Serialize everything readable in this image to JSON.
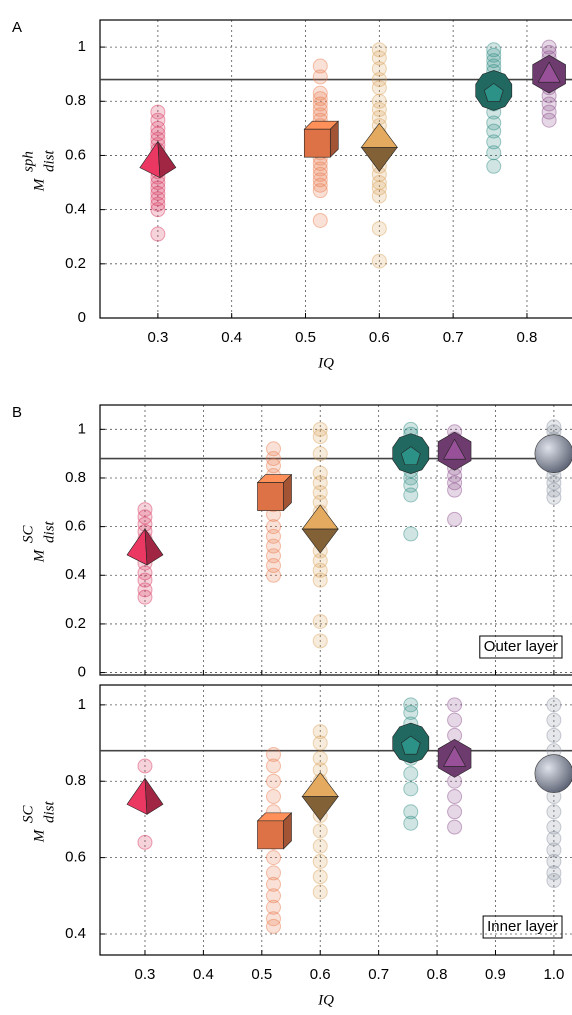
{
  "chart_data": [
    {
      "type": "scatter",
      "label": "A",
      "ylabel": {
        "base": "M",
        "sup": "sph",
        "sub": "dist"
      },
      "xlabel": "IQ",
      "xlim": [
        0.2216,
        0.861
      ],
      "ylim": [
        0,
        1.1
      ],
      "xticks": [
        0.3,
        0.4,
        0.5,
        0.6,
        0.7,
        0.8
      ],
      "yticks": [
        0,
        0.2,
        0.4,
        0.6,
        0.8,
        1
      ],
      "xticklabels": true,
      "grid": true,
      "hline": 0.88,
      "series": [
        {
          "color": "#d6335a",
          "marker": "tetrahedron",
          "x": 0.3,
          "mean": 0.57,
          "values": [
            0.31,
            0.4,
            0.42,
            0.44,
            0.46,
            0.48,
            0.5,
            0.52,
            0.54,
            0.56,
            0.58,
            0.6,
            0.62,
            0.64,
            0.66,
            0.68,
            0.7,
            0.73,
            0.76
          ]
        },
        {
          "color": "#e8784a",
          "marker": "cube",
          "x": 0.52,
          "mean": 0.66,
          "values": [
            0.36,
            0.47,
            0.49,
            0.51,
            0.53,
            0.55,
            0.57,
            0.59,
            0.61,
            0.63,
            0.65,
            0.67,
            0.69,
            0.71,
            0.73,
            0.75,
            0.77,
            0.79,
            0.81,
            0.83,
            0.89,
            0.93
          ]
        },
        {
          "color": "#d9a25a",
          "marker": "octahedron",
          "x": 0.6,
          "mean": 0.63,
          "values": [
            0.21,
            0.33,
            0.45,
            0.48,
            0.5,
            0.53,
            0.56,
            0.59,
            0.62,
            0.65,
            0.68,
            0.71,
            0.74,
            0.77,
            0.8,
            0.85,
            0.88,
            0.92,
            0.96,
            0.99
          ]
        },
        {
          "color": "#2a8a80",
          "marker": "dodecahedron",
          "x": 0.755,
          "mean": 0.84,
          "values": [
            0.56,
            0.61,
            0.65,
            0.69,
            0.72,
            0.76,
            0.79,
            0.82,
            0.85,
            0.88,
            0.91,
            0.93,
            0.95,
            0.97,
            0.99
          ]
        },
        {
          "color": "#8a4a8a",
          "marker": "icosahedron",
          "x": 0.83,
          "mean": 0.9,
          "values": [
            0.73,
            0.76,
            0.79,
            0.82,
            0.85,
            0.88,
            0.9,
            0.92,
            0.94,
            0.96,
            0.98,
            1.0
          ]
        }
      ]
    },
    {
      "type": "scatter",
      "label": "B",
      "annotation": "Outer layer",
      "ylabel": {
        "base": "M",
        "sup": "SC",
        "sub": "dist"
      },
      "xlim": [
        0.223,
        1.031
      ],
      "ylim": [
        -0.01,
        1.1
      ],
      "xticks": [
        0.3,
        0.4,
        0.5,
        0.6,
        0.7,
        0.8,
        0.9,
        1
      ],
      "yticks": [
        0,
        0.2,
        0.4,
        0.6,
        0.8,
        1
      ],
      "xticklabels": false,
      "grid": true,
      "hline": 0.88,
      "series": [
        {
          "color": "#d6335a",
          "marker": "tetrahedron",
          "x": 0.3,
          "mean": 0.5,
          "values": [
            0.31,
            0.34,
            0.38,
            0.41,
            0.45,
            0.48,
            0.52,
            0.55,
            0.58,
            0.61,
            0.64,
            0.67
          ]
        },
        {
          "color": "#e8784a",
          "marker": "cube",
          "x": 0.52,
          "mean": 0.74,
          "values": [
            0.4,
            0.44,
            0.48,
            0.52,
            0.56,
            0.6,
            0.65,
            0.69,
            0.73,
            0.77,
            0.81,
            0.85,
            0.88,
            0.92
          ]
        },
        {
          "color": "#d9a25a",
          "marker": "octahedron",
          "x": 0.6,
          "mean": 0.59,
          "values": [
            0.13,
            0.21,
            0.38,
            0.42,
            0.46,
            0.5,
            0.54,
            0.58,
            0.62,
            0.66,
            0.7,
            0.74,
            0.78,
            0.82,
            0.9,
            0.97,
            1.0
          ]
        },
        {
          "color": "#2a8a80",
          "marker": "dodecahedron",
          "x": 0.755,
          "mean": 0.9,
          "values": [
            0.57,
            0.73,
            0.77,
            0.8,
            0.83,
            0.86,
            0.89,
            0.92,
            0.95,
            0.98,
            1.0
          ]
        },
        {
          "color": "#8a4a8a",
          "marker": "icosahedron",
          "x": 0.83,
          "mean": 0.91,
          "values": [
            0.63,
            0.75,
            0.78,
            0.81,
            0.84,
            0.87,
            0.9,
            0.93,
            0.96,
            0.99
          ]
        },
        {
          "color": "#8a90a0",
          "marker": "sphere",
          "x": 1.0,
          "mean": 0.9,
          "values": [
            0.72,
            0.75,
            0.78,
            0.81,
            0.84,
            0.87,
            0.9,
            0.93,
            0.96,
            0.99,
            1.01
          ]
        }
      ]
    },
    {
      "type": "scatter",
      "annotation": "Inner layer",
      "ylabel": {
        "base": "M",
        "sup": "SC",
        "sub": "dist"
      },
      "xlabel": "IQ",
      "xlim": [
        0.223,
        1.031
      ],
      "ylim": [
        0.345,
        1.052
      ],
      "xticks": [
        0.3,
        0.4,
        0.5,
        0.6,
        0.7,
        0.8,
        0.9,
        {
          "value": 1,
          "label": "1.0"
        }
      ],
      "yticks": [
        0.4,
        0.6,
        0.8,
        1
      ],
      "xticklabels": true,
      "grid": true,
      "hline": 0.88,
      "series": [
        {
          "color": "#d6335a",
          "marker": "tetrahedron",
          "x": 0.3,
          "mean": 0.75,
          "values": [
            0.64,
            0.75,
            0.84
          ]
        },
        {
          "color": "#e8784a",
          "marker": "cube",
          "x": 0.52,
          "mean": 0.67,
          "values": [
            0.42,
            0.44,
            0.47,
            0.5,
            0.53,
            0.56,
            0.6,
            0.64,
            0.68,
            0.72,
            0.76,
            0.8,
            0.84,
            0.87
          ]
        },
        {
          "color": "#d9a25a",
          "marker": "octahedron",
          "x": 0.6,
          "mean": 0.76,
          "values": [
            0.51,
            0.55,
            0.59,
            0.63,
            0.67,
            0.71,
            0.74,
            0.77,
            0.8,
            0.83,
            0.86,
            0.9,
            0.93
          ]
        },
        {
          "color": "#2a8a80",
          "marker": "dodecahedron",
          "x": 0.755,
          "mean": 0.9,
          "values": [
            0.69,
            0.72,
            0.78,
            0.82,
            0.86,
            0.89,
            0.92,
            0.95,
            0.98,
            1.0
          ]
        },
        {
          "color": "#8a4a8a",
          "marker": "icosahedron",
          "x": 0.83,
          "mean": 0.86,
          "values": [
            0.68,
            0.72,
            0.76,
            0.8,
            0.84,
            0.88,
            0.92,
            0.96,
            1.0
          ]
        },
        {
          "color": "#8a90a0",
          "marker": "sphere",
          "x": 1.0,
          "mean": 0.82,
          "values": [
            0.54,
            0.56,
            0.59,
            0.62,
            0.65,
            0.68,
            0.72,
            0.76,
            0.8,
            0.84,
            0.88,
            0.92,
            0.96,
            1.0
          ]
        }
      ]
    }
  ]
}
